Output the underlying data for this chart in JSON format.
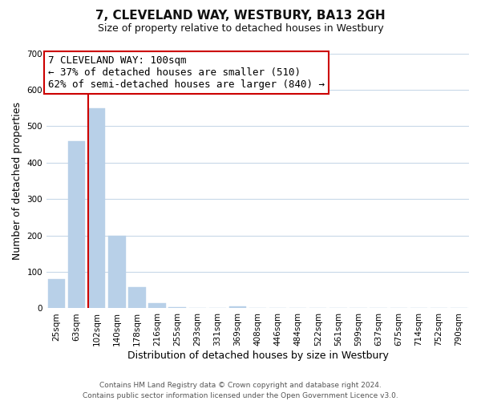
{
  "title": "7, CLEVELAND WAY, WESTBURY, BA13 2GH",
  "subtitle": "Size of property relative to detached houses in Westbury",
  "xlabel": "Distribution of detached houses by size in Westbury",
  "ylabel": "Number of detached properties",
  "bar_labels": [
    "25sqm",
    "63sqm",
    "102sqm",
    "140sqm",
    "178sqm",
    "216sqm",
    "255sqm",
    "293sqm",
    "331sqm",
    "369sqm",
    "408sqm",
    "446sqm",
    "484sqm",
    "522sqm",
    "561sqm",
    "599sqm",
    "637sqm",
    "675sqm",
    "714sqm",
    "752sqm",
    "790sqm"
  ],
  "bar_values": [
    80,
    460,
    550,
    200,
    58,
    15,
    3,
    0,
    0,
    5,
    0,
    0,
    0,
    0,
    0,
    0,
    0,
    0,
    0,
    0,
    0
  ],
  "bar_color": "#b8d0e8",
  "vline_color": "#cc0000",
  "vline_x_index": 2,
  "ylim": [
    0,
    700
  ],
  "yticks": [
    0,
    100,
    200,
    300,
    400,
    500,
    600,
    700
  ],
  "annotation_text": "7 CLEVELAND WAY: 100sqm\n← 37% of detached houses are smaller (510)\n62% of semi-detached houses are larger (840) →",
  "annotation_box_color": "#ffffff",
  "annotation_box_edgecolor": "#cc0000",
  "footer_line1": "Contains HM Land Registry data © Crown copyright and database right 2024.",
  "footer_line2": "Contains public sector information licensed under the Open Government Licence v3.0.",
  "background_color": "#ffffff",
  "grid_color": "#c8d8e8",
  "title_fontsize": 11,
  "subtitle_fontsize": 9,
  "axis_label_fontsize": 9,
  "tick_fontsize": 7.5,
  "annotation_fontsize": 9,
  "footer_fontsize": 6.5
}
